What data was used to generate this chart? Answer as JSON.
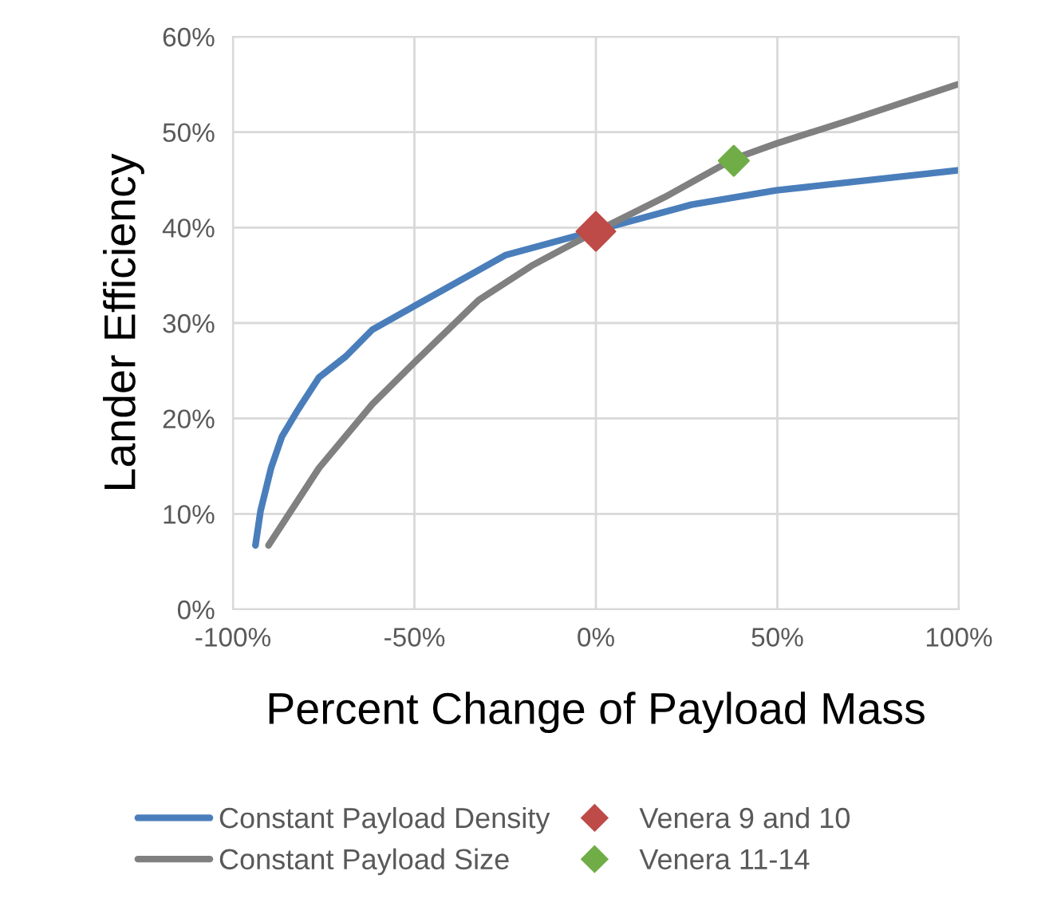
{
  "chart_data": {
    "type": "line",
    "xlabel": "Percent Change of Payload Mass",
    "ylabel": "Lander Efficiency",
    "xlim": [
      -100,
      100
    ],
    "xticks": [
      {
        "value": -100,
        "label": "-100%"
      },
      {
        "value": -50,
        "label": "-50%"
      },
      {
        "value": 0,
        "label": "0%"
      },
      {
        "value": 50,
        "label": "50%"
      },
      {
        "value": 100,
        "label": "100%"
      }
    ],
    "ylim": [
      0,
      60
    ],
    "yticks": [
      {
        "value": 0,
        "label": "0%"
      },
      {
        "value": 10,
        "label": "10%"
      },
      {
        "value": 20,
        "label": "20%"
      },
      {
        "value": 30,
        "label": "30%"
      },
      {
        "value": 40,
        "label": "40%"
      },
      {
        "value": 50,
        "label": "50%"
      },
      {
        "value": 60,
        "label": "60%"
      }
    ],
    "grid": true,
    "legend": "bottom",
    "series": [
      {
        "name": "Constant Payload Density",
        "color": "#4a7ebb",
        "marker": "none",
        "x": [
          -93.8,
          -92.4,
          -89.5,
          -86.5,
          -82.1,
          -76.3,
          -68.9,
          -61.6,
          -49.9,
          -25,
          26.3,
          49.7,
          99.6
        ],
        "values": [
          6.7,
          10.3,
          14.8,
          18.1,
          20.9,
          24.3,
          26.5,
          29.3,
          31.8,
          37.1,
          42.4,
          43.9,
          46.0
        ]
      },
      {
        "name": "Constant Payload Size",
        "color": "#808080",
        "marker": "none",
        "x": [
          -90.2,
          -76.3,
          -61.6,
          -49.9,
          -32.3,
          -17.7,
          0,
          19,
          38,
          49.7,
          70.3,
          99.6
        ],
        "values": [
          6.7,
          14.8,
          21.5,
          25.9,
          32.4,
          36,
          39.6,
          43.2,
          47.2,
          48.8,
          51.3,
          55
        ]
      },
      {
        "name": "Venera 9 and 10",
        "type": "scatter",
        "color": "#be4b48",
        "marker": "diamond",
        "x": [
          0
        ],
        "values": [
          39.6
        ]
      },
      {
        "name": "Venera 11-14",
        "type": "scatter",
        "color": "#70ad47",
        "marker": "diamond",
        "x": [
          38
        ],
        "values": [
          47
        ]
      }
    ]
  }
}
